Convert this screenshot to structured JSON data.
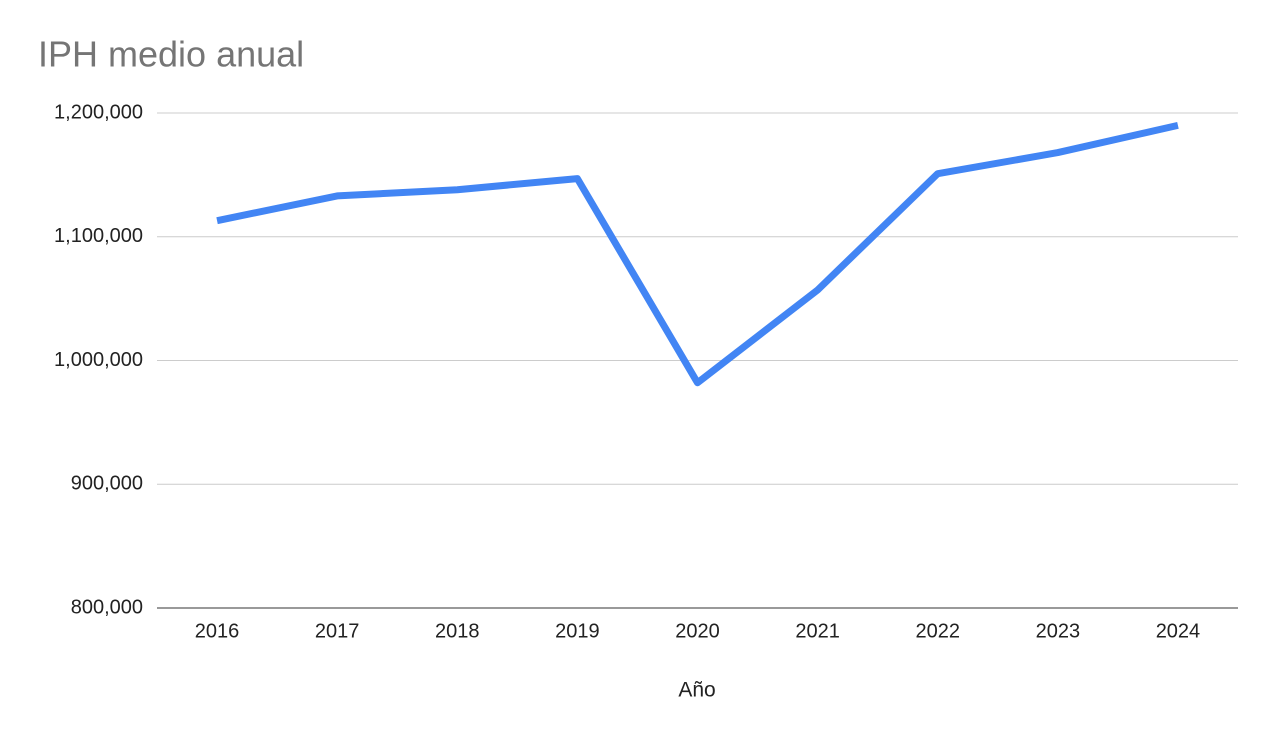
{
  "chart_data": {
    "type": "line",
    "title": "IPH medio anual",
    "x_label": "Año",
    "categories": [
      "2016",
      "2017",
      "2018",
      "2019",
      "2020",
      "2021",
      "2022",
      "2023",
      "2024"
    ],
    "series": [
      {
        "name": "IPH medio anual",
        "color": "#4285f4",
        "values": [
          1113000,
          1133000,
          1138000,
          1147000,
          982000,
          1057000,
          1151000,
          1168000,
          1190000
        ]
      }
    ],
    "ylim": [
      800000,
      1200000
    ],
    "yticks": [
      {
        "value": 800000,
        "label": "800,000"
      },
      {
        "value": 900000,
        "label": "900,000"
      },
      {
        "value": 1000000,
        "label": "1,000,000"
      },
      {
        "value": 1100000,
        "label": "1,100,000"
      },
      {
        "value": 1200000,
        "label": "1,200,000"
      }
    ],
    "grid": true
  }
}
